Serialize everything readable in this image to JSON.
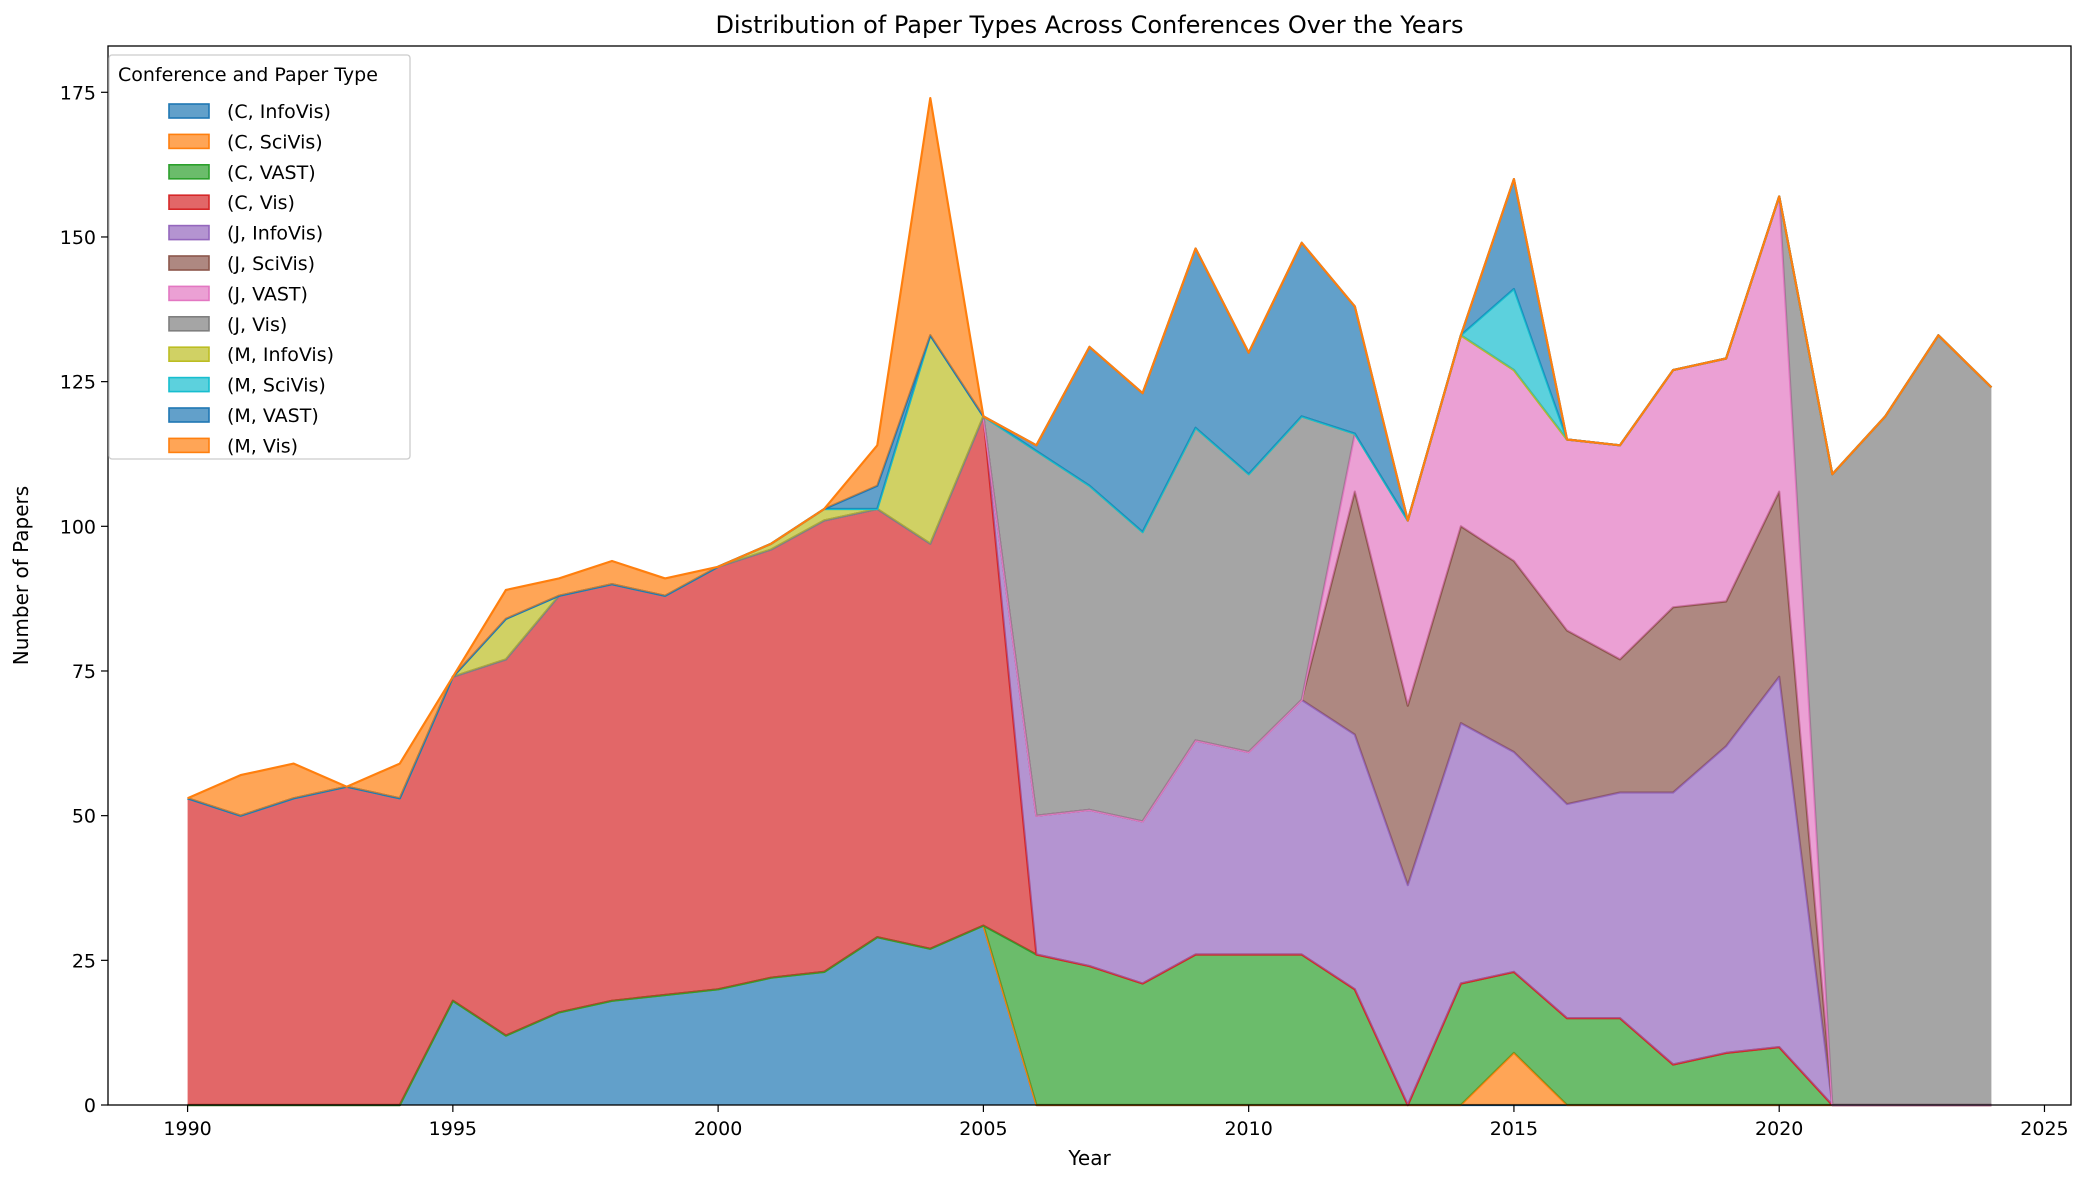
{
  "chart_data": {
    "type": "area",
    "stacked": true,
    "title": "Distribution of Paper Types Across Conferences Over the Years",
    "xlabel": "Year",
    "ylabel": "Number of Papers",
    "xlim": [
      1988.5,
      2025.5
    ],
    "ylim": [
      0,
      183
    ],
    "xticks": [
      1990,
      1995,
      2000,
      2005,
      2010,
      2015,
      2020,
      2025
    ],
    "yticks": [
      0,
      25,
      50,
      75,
      100,
      125,
      150,
      175
    ],
    "grid": false,
    "legend": {
      "title": "Conference and Paper Type",
      "placement": "top-left"
    },
    "x": [
      1990,
      1991,
      1992,
      1993,
      1994,
      1995,
      1996,
      1997,
      1998,
      1999,
      2000,
      2001,
      2002,
      2003,
      2004,
      2005,
      2006,
      2007,
      2008,
      2009,
      2010,
      2011,
      2012,
      2013,
      2014,
      2015,
      2016,
      2017,
      2018,
      2019,
      2020,
      2021,
      2022,
      2023,
      2024
    ],
    "series": [
      {
        "name": "(C, InfoVis)",
        "color": "#1f77b4",
        "values": [
          0,
          0,
          0,
          0,
          0,
          18,
          12,
          16,
          18,
          19,
          20,
          22,
          23,
          29,
          27,
          31,
          0,
          0,
          0,
          0,
          0,
          0,
          0,
          0,
          0,
          0,
          0,
          0,
          0,
          0,
          0,
          0,
          0,
          0,
          0
        ]
      },
      {
        "name": "(C, SciVis)",
        "color": "#ff7f0e",
        "values": [
          0,
          0,
          0,
          0,
          0,
          0,
          0,
          0,
          0,
          0,
          0,
          0,
          0,
          0,
          0,
          0,
          0,
          0,
          0,
          0,
          0,
          0,
          0,
          0,
          0,
          9,
          0,
          0,
          0,
          0,
          0,
          0,
          0,
          0,
          0
        ]
      },
      {
        "name": "(C, VAST)",
        "color": "#2ca02c",
        "values": [
          0,
          0,
          0,
          0,
          0,
          0,
          0,
          0,
          0,
          0,
          0,
          0,
          0,
          0,
          0,
          0,
          26,
          24,
          21,
          26,
          26,
          26,
          20,
          0,
          21,
          14,
          15,
          15,
          7,
          9,
          10,
          0,
          0,
          0,
          0
        ]
      },
      {
        "name": "(C, Vis)",
        "color": "#d62728",
        "values": [
          53,
          50,
          53,
          55,
          53,
          56,
          65,
          72,
          72,
          69,
          73,
          74,
          78,
          74,
          70,
          88,
          0,
          0,
          0,
          0,
          0,
          0,
          0,
          0,
          0,
          0,
          0,
          0,
          0,
          0,
          0,
          0,
          0,
          0,
          0
        ]
      },
      {
        "name": "(J, InfoVis)",
        "color": "#9467bd",
        "values": [
          0,
          0,
          0,
          0,
          0,
          0,
          0,
          0,
          0,
          0,
          0,
          0,
          0,
          0,
          0,
          0,
          24,
          27,
          28,
          37,
          35,
          44,
          44,
          38,
          45,
          38,
          37,
          39,
          47,
          53,
          64,
          0,
          0,
          0,
          0
        ]
      },
      {
        "name": "(J, SciVis)",
        "color": "#8c564b",
        "values": [
          0,
          0,
          0,
          0,
          0,
          0,
          0,
          0,
          0,
          0,
          0,
          0,
          0,
          0,
          0,
          0,
          0,
          0,
          0,
          0,
          0,
          0,
          42,
          31,
          34,
          33,
          30,
          23,
          32,
          25,
          32,
          0,
          0,
          0,
          0
        ]
      },
      {
        "name": "(J, VAST)",
        "color": "#e377c2",
        "values": [
          0,
          0,
          0,
          0,
          0,
          0,
          0,
          0,
          0,
          0,
          0,
          0,
          0,
          0,
          0,
          0,
          0,
          0,
          0,
          0,
          0,
          0,
          10,
          32,
          33,
          33,
          33,
          37,
          41,
          42,
          51,
          0,
          0,
          0,
          0
        ]
      },
      {
        "name": "(J, Vis)",
        "color": "#7f7f7f",
        "values": [
          0,
          0,
          0,
          0,
          0,
          0,
          0,
          0,
          0,
          0,
          0,
          0,
          0,
          0,
          0,
          0,
          63,
          56,
          50,
          54,
          48,
          49,
          0,
          0,
          0,
          0,
          0,
          0,
          0,
          0,
          0,
          109,
          119,
          133,
          124
        ]
      },
      {
        "name": "(M, InfoVis)",
        "color": "#bcbd22",
        "values": [
          0,
          0,
          0,
          0,
          0,
          0,
          7,
          0,
          0,
          0,
          0,
          1,
          2,
          0,
          36,
          0,
          0,
          0,
          0,
          0,
          0,
          0,
          0,
          0,
          0,
          0,
          0,
          0,
          0,
          0,
          0,
          0,
          0,
          0,
          0
        ]
      },
      {
        "name": "(M, SciVis)",
        "color": "#17becf",
        "values": [
          0,
          0,
          0,
          0,
          0,
          0,
          0,
          0,
          0,
          0,
          0,
          0,
          0,
          0,
          0,
          0,
          0,
          0,
          0,
          0,
          0,
          0,
          0,
          0,
          0,
          14,
          0,
          0,
          0,
          0,
          0,
          0,
          0,
          0,
          0
        ]
      },
      {
        "name": "(M, VAST)",
        "color": "#1f77b4",
        "values": [
          0,
          0,
          0,
          0,
          0,
          0,
          0,
          0,
          0,
          0,
          0,
          0,
          0,
          4,
          0,
          0,
          1,
          24,
          24,
          31,
          21,
          30,
          22,
          0,
          0,
          19,
          0,
          0,
          0,
          0,
          0,
          0,
          0,
          0,
          0
        ]
      },
      {
        "name": "(M, Vis)",
        "color": "#ff7f0e",
        "values": [
          0,
          7,
          6,
          0,
          6,
          0,
          5,
          3,
          4,
          3,
          0,
          0,
          0,
          7,
          41,
          0,
          0,
          0,
          0,
          0,
          0,
          0,
          0,
          0,
          0,
          0,
          0,
          0,
          0,
          0,
          0,
          0,
          0,
          0,
          0
        ]
      }
    ]
  }
}
